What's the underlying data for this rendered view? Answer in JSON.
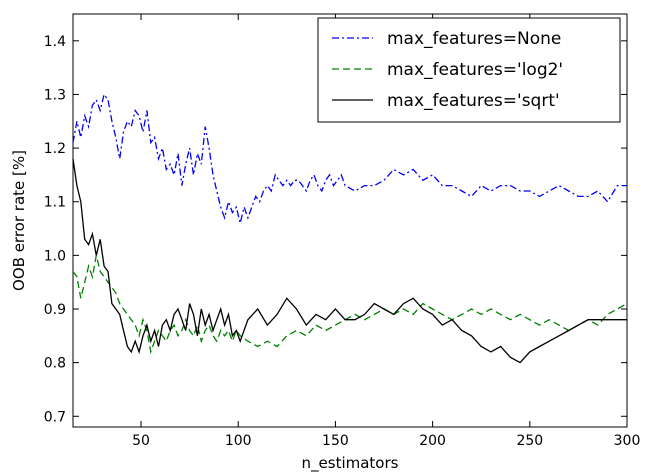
{
  "chart_data": {
    "type": "line",
    "xlabel": "n_estimators",
    "ylabel": "OOB error rate [%]",
    "xlim": [
      15,
      300
    ],
    "ylim": [
      0.68,
      1.45
    ],
    "xticks": [
      50,
      100,
      150,
      200,
      250,
      300
    ],
    "yticks": [
      0.7,
      0.8,
      0.9,
      1.0,
      1.1,
      1.2,
      1.3,
      1.4
    ],
    "grid": false,
    "legend_position": "top-right",
    "series": [
      {
        "name": "max_features=None",
        "color": "#0000ff",
        "dash": "dashdot",
        "x": [
          15,
          17,
          19,
          21,
          23,
          25,
          27,
          29,
          31,
          33,
          35,
          37,
          39,
          41,
          43,
          45,
          47,
          49,
          51,
          53,
          55,
          57,
          59,
          61,
          63,
          65,
          67,
          69,
          71,
          73,
          75,
          77,
          79,
          81,
          83,
          85,
          87,
          89,
          91,
          93,
          95,
          97,
          99,
          101,
          103,
          105,
          107,
          109,
          111,
          113,
          115,
          117,
          119,
          121,
          123,
          125,
          127,
          129,
          131,
          133,
          135,
          137,
          139,
          141,
          143,
          145,
          147,
          149,
          151,
          153,
          155,
          160,
          165,
          170,
          175,
          180,
          185,
          190,
          195,
          200,
          205,
          210,
          215,
          220,
          225,
          230,
          235,
          240,
          245,
          250,
          255,
          260,
          265,
          270,
          275,
          280,
          285,
          290,
          295,
          300
        ],
        "y": [
          1.21,
          1.25,
          1.22,
          1.26,
          1.24,
          1.28,
          1.29,
          1.27,
          1.3,
          1.29,
          1.25,
          1.22,
          1.18,
          1.23,
          1.25,
          1.24,
          1.27,
          1.26,
          1.23,
          1.27,
          1.21,
          1.22,
          1.18,
          1.2,
          1.16,
          1.17,
          1.15,
          1.19,
          1.13,
          1.17,
          1.2,
          1.15,
          1.19,
          1.17,
          1.24,
          1.2,
          1.15,
          1.12,
          1.09,
          1.07,
          1.1,
          1.08,
          1.09,
          1.06,
          1.09,
          1.07,
          1.09,
          1.11,
          1.1,
          1.12,
          1.13,
          1.12,
          1.15,
          1.14,
          1.13,
          1.14,
          1.13,
          1.14,
          1.14,
          1.13,
          1.12,
          1.14,
          1.15,
          1.13,
          1.12,
          1.14,
          1.15,
          1.13,
          1.14,
          1.15,
          1.13,
          1.12,
          1.13,
          1.13,
          1.14,
          1.16,
          1.15,
          1.16,
          1.14,
          1.15,
          1.13,
          1.13,
          1.12,
          1.11,
          1.13,
          1.12,
          1.13,
          1.13,
          1.12,
          1.12,
          1.11,
          1.12,
          1.13,
          1.12,
          1.11,
          1.11,
          1.12,
          1.1,
          1.13,
          1.13
        ]
      },
      {
        "name": "max_features='log2'",
        "color": "#008000",
        "dash": "dashed",
        "x": [
          15,
          17,
          19,
          21,
          23,
          25,
          27,
          29,
          31,
          33,
          35,
          37,
          39,
          41,
          43,
          45,
          47,
          49,
          51,
          53,
          55,
          57,
          59,
          61,
          63,
          65,
          67,
          69,
          71,
          73,
          75,
          77,
          79,
          81,
          83,
          85,
          87,
          89,
          91,
          93,
          95,
          97,
          99,
          101,
          105,
          110,
          115,
          120,
          125,
          130,
          135,
          140,
          145,
          150,
          155,
          160,
          165,
          170,
          175,
          180,
          185,
          190,
          195,
          200,
          205,
          210,
          215,
          220,
          225,
          230,
          235,
          240,
          245,
          250,
          255,
          260,
          265,
          270,
          275,
          280,
          285,
          290,
          295,
          300
        ],
        "y": [
          0.97,
          0.96,
          0.92,
          0.95,
          0.98,
          0.96,
          1.0,
          0.97,
          0.96,
          0.95,
          0.94,
          0.93,
          0.91,
          0.9,
          0.89,
          0.88,
          0.87,
          0.85,
          0.88,
          0.86,
          0.82,
          0.84,
          0.86,
          0.85,
          0.84,
          0.86,
          0.87,
          0.85,
          0.86,
          0.88,
          0.86,
          0.85,
          0.87,
          0.84,
          0.86,
          0.87,
          0.85,
          0.84,
          0.86,
          0.85,
          0.86,
          0.84,
          0.86,
          0.85,
          0.84,
          0.83,
          0.84,
          0.83,
          0.85,
          0.86,
          0.85,
          0.87,
          0.86,
          0.87,
          0.88,
          0.89,
          0.88,
          0.89,
          0.9,
          0.89,
          0.9,
          0.89,
          0.91,
          0.9,
          0.89,
          0.88,
          0.89,
          0.9,
          0.89,
          0.9,
          0.89,
          0.88,
          0.89,
          0.88,
          0.87,
          0.88,
          0.87,
          0.86,
          0.87,
          0.88,
          0.87,
          0.89,
          0.9,
          0.91
        ]
      },
      {
        "name": "max_features='sqrt'",
        "color": "#000000",
        "dash": "solid",
        "x": [
          15,
          17,
          19,
          21,
          23,
          25,
          27,
          29,
          31,
          33,
          35,
          37,
          39,
          41,
          43,
          45,
          47,
          49,
          51,
          53,
          55,
          57,
          59,
          61,
          63,
          65,
          67,
          69,
          71,
          73,
          75,
          77,
          79,
          81,
          83,
          85,
          87,
          89,
          91,
          93,
          95,
          97,
          99,
          101,
          105,
          110,
          115,
          120,
          125,
          130,
          135,
          140,
          145,
          150,
          155,
          160,
          165,
          170,
          175,
          180,
          185,
          190,
          195,
          200,
          205,
          210,
          215,
          220,
          225,
          230,
          235,
          240,
          245,
          250,
          255,
          260,
          265,
          270,
          275,
          280,
          285,
          290,
          295,
          300
        ],
        "y": [
          1.18,
          1.13,
          1.1,
          1.03,
          1.02,
          1.04,
          1.0,
          1.03,
          0.98,
          0.97,
          0.91,
          0.9,
          0.89,
          0.86,
          0.83,
          0.82,
          0.84,
          0.82,
          0.85,
          0.87,
          0.84,
          0.86,
          0.83,
          0.87,
          0.88,
          0.86,
          0.89,
          0.9,
          0.88,
          0.86,
          0.91,
          0.89,
          0.85,
          0.9,
          0.87,
          0.89,
          0.86,
          0.88,
          0.9,
          0.87,
          0.89,
          0.85,
          0.86,
          0.84,
          0.88,
          0.9,
          0.87,
          0.89,
          0.92,
          0.9,
          0.87,
          0.89,
          0.88,
          0.9,
          0.88,
          0.88,
          0.89,
          0.91,
          0.9,
          0.89,
          0.91,
          0.92,
          0.9,
          0.89,
          0.87,
          0.88,
          0.86,
          0.85,
          0.83,
          0.82,
          0.83,
          0.81,
          0.8,
          0.82,
          0.83,
          0.84,
          0.85,
          0.86,
          0.87,
          0.88,
          0.88,
          0.88,
          0.88,
          0.88
        ]
      }
    ]
  }
}
